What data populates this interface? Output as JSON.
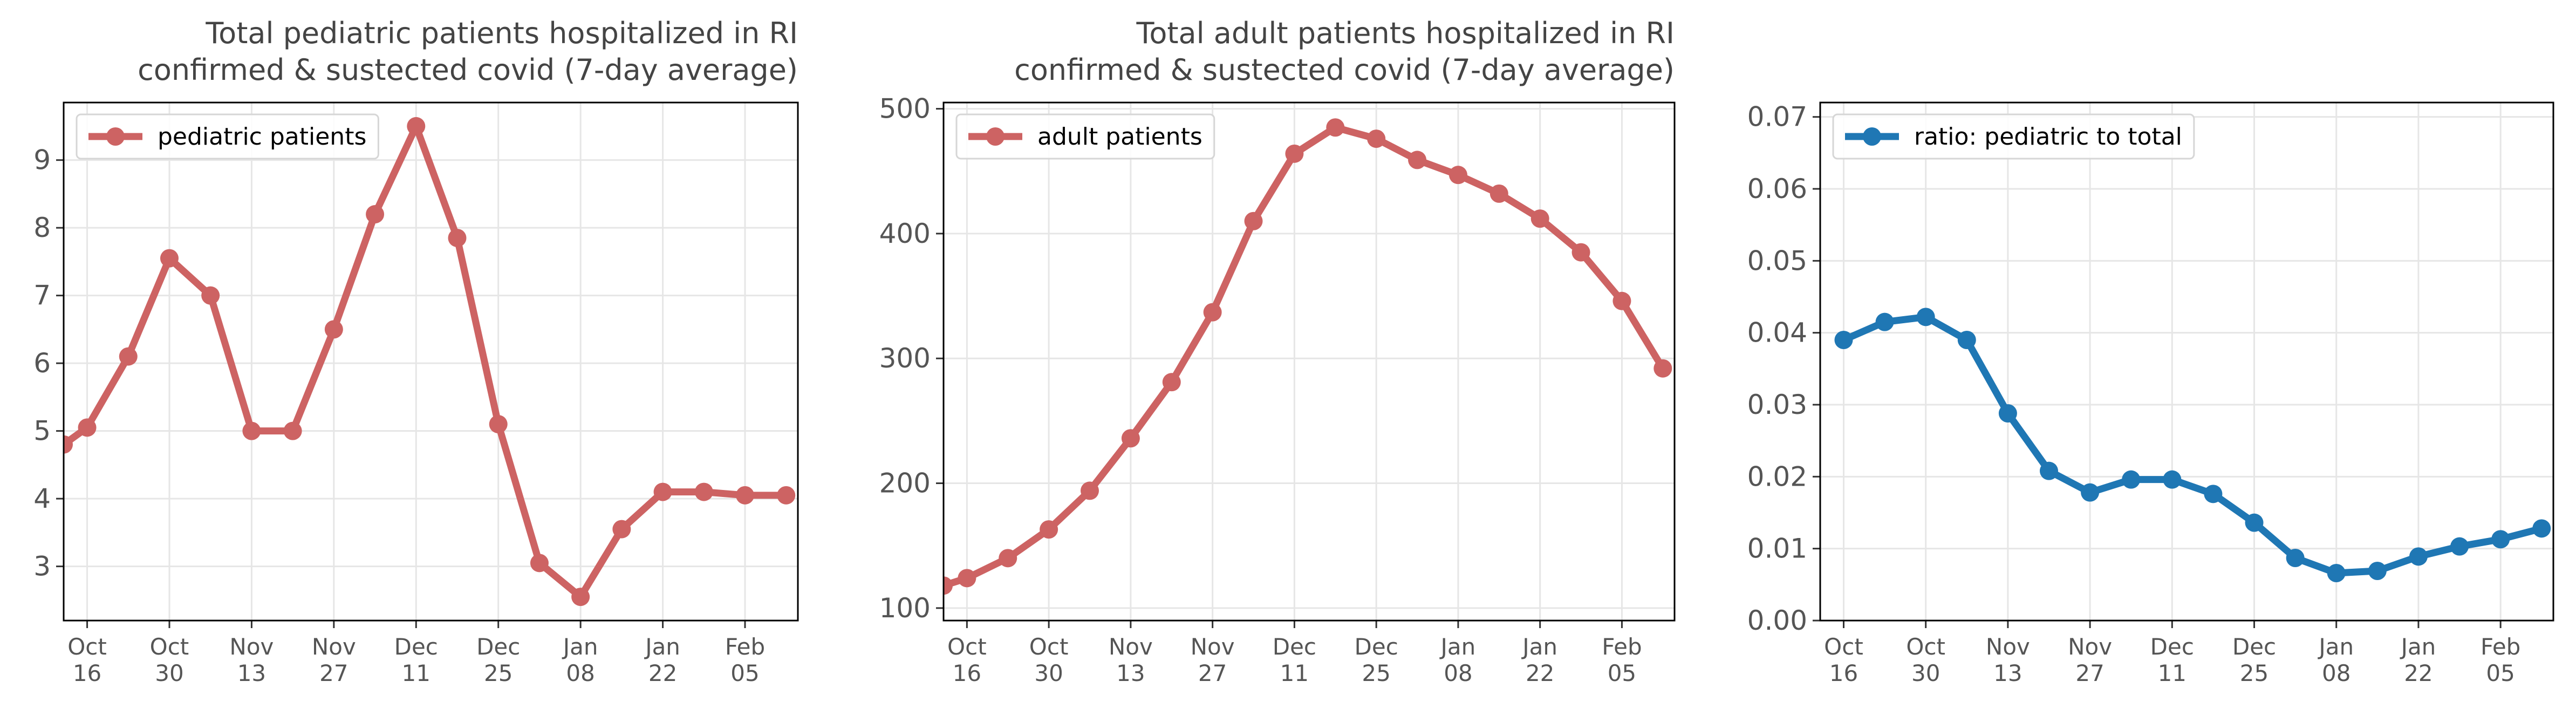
{
  "chart_data": [
    {
      "type": "line",
      "title_line1": "Total pediatric patients hospitalized in RI",
      "title_line2": "confirmed & sustected covid (7-day average)",
      "series": [
        {
          "name": "pediatric patients",
          "color": "#cd6363",
          "x": [
            "2021-10-12",
            "2021-10-16",
            "2021-10-23",
            "2021-10-30",
            "2021-11-06",
            "2021-11-13",
            "2021-11-20",
            "2021-11-27",
            "2021-12-04",
            "2021-12-11",
            "2021-12-18",
            "2021-12-25",
            "2022-01-01",
            "2022-01-08",
            "2022-01-15",
            "2022-01-22",
            "2022-01-29",
            "2022-02-05",
            "2022-02-12"
          ],
          "y": [
            4.8,
            5.05,
            6.1,
            7.55,
            7.0,
            5.0,
            5.0,
            6.5,
            8.2,
            9.5,
            7.85,
            5.1,
            3.05,
            2.55,
            3.55,
            4.1,
            4.1,
            4.05,
            4.05
          ]
        }
      ],
      "ylim": [
        2.2,
        9.85
      ],
      "yticks": [
        "3",
        "4",
        "5",
        "6",
        "7",
        "8",
        "9"
      ],
      "ytick_values": [
        3,
        4,
        5,
        6,
        7,
        8,
        9
      ],
      "xlim": [
        "2021-10-12",
        "2022-02-14"
      ],
      "xtick_dates": [
        "2021-10-16",
        "2021-10-30",
        "2021-11-13",
        "2021-11-27",
        "2021-12-11",
        "2021-12-25",
        "2022-01-08",
        "2022-01-22",
        "2022-02-05"
      ],
      "xtick_labels": [
        [
          "Oct",
          "16"
        ],
        [
          "Oct",
          "30"
        ],
        [
          "Nov",
          "13"
        ],
        [
          "Nov",
          "27"
        ],
        [
          "Dec",
          "11"
        ],
        [
          "Dec",
          "25"
        ],
        [
          "Jan",
          "08"
        ],
        [
          "Jan",
          "22"
        ],
        [
          "Feb",
          "05"
        ]
      ],
      "grid": true,
      "legend": "top-left"
    },
    {
      "type": "line",
      "title_line1": "Total adult patients hospitalized in RI",
      "title_line2": "confirmed & sustected covid (7-day average)",
      "series": [
        {
          "name": "adult patients",
          "color": "#cd6363",
          "x": [
            "2021-10-12",
            "2021-10-16",
            "2021-10-23",
            "2021-10-30",
            "2021-11-06",
            "2021-11-13",
            "2021-11-20",
            "2021-11-27",
            "2021-12-04",
            "2021-12-11",
            "2021-12-18",
            "2021-12-25",
            "2022-01-01",
            "2022-01-08",
            "2022-01-15",
            "2022-01-22",
            "2022-01-29",
            "2022-02-05",
            "2022-02-12"
          ],
          "y": [
            118,
            124,
            140,
            163,
            194,
            236,
            281,
            337,
            410,
            464,
            485,
            476,
            459,
            447,
            432,
            412,
            385,
            346,
            292
          ]
        }
      ],
      "ylim": [
        90,
        505
      ],
      "yticks": [
        "100",
        "200",
        "300",
        "400",
        "500"
      ],
      "ytick_values": [
        100,
        200,
        300,
        400,
        500
      ],
      "xlim": [
        "2021-10-12",
        "2022-02-14"
      ],
      "xtick_dates": [
        "2021-10-16",
        "2021-10-30",
        "2021-11-13",
        "2021-11-27",
        "2021-12-11",
        "2021-12-25",
        "2022-01-08",
        "2022-01-22",
        "2022-02-05"
      ],
      "xtick_labels": [
        [
          "Oct",
          "16"
        ],
        [
          "Oct",
          "30"
        ],
        [
          "Nov",
          "13"
        ],
        [
          "Nov",
          "27"
        ],
        [
          "Dec",
          "11"
        ],
        [
          "Dec",
          "25"
        ],
        [
          "Jan",
          "08"
        ],
        [
          "Jan",
          "22"
        ],
        [
          "Feb",
          "05"
        ]
      ],
      "grid": true,
      "legend": "top-left"
    },
    {
      "type": "line",
      "title_line1": "",
      "title_line2": "",
      "series": [
        {
          "name": "ratio: pediatric to total",
          "color": "#1f77b4",
          "x": [
            "2021-10-16",
            "2021-10-23",
            "2021-10-30",
            "2021-11-06",
            "2021-11-13",
            "2021-11-20",
            "2021-11-27",
            "2021-12-04",
            "2021-12-11",
            "2021-12-18",
            "2021-12-25",
            "2022-01-01",
            "2022-01-08",
            "2022-01-15",
            "2022-01-22",
            "2022-01-29",
            "2022-02-05",
            "2022-02-12"
          ],
          "y": [
            0.039,
            0.0415,
            0.0422,
            0.039,
            0.0288,
            0.0208,
            0.0178,
            0.0196,
            0.0196,
            0.0176,
            0.0136,
            0.0087,
            0.0066,
            0.0069,
            0.0089,
            0.0103,
            0.0113,
            0.0128
          ]
        }
      ],
      "ylim": [
        0.0,
        0.072
      ],
      "yticks": [
        "0.00",
        "0.01",
        "0.02",
        "0.03",
        "0.04",
        "0.05",
        "0.06",
        "0.07"
      ],
      "ytick_values": [
        0,
        0.01,
        0.02,
        0.03,
        0.04,
        0.05,
        0.06,
        0.07
      ],
      "xlim": [
        "2021-10-12",
        "2022-02-14"
      ],
      "xtick_dates": [
        "2021-10-16",
        "2021-10-30",
        "2021-11-13",
        "2021-11-27",
        "2021-12-11",
        "2021-12-25",
        "2022-01-08",
        "2022-01-22",
        "2022-02-05"
      ],
      "xtick_labels": [
        [
          "Oct",
          "16"
        ],
        [
          "Oct",
          "30"
        ],
        [
          "Nov",
          "13"
        ],
        [
          "Nov",
          "27"
        ],
        [
          "Dec",
          "11"
        ],
        [
          "Dec",
          "25"
        ],
        [
          "Jan",
          "08"
        ],
        [
          "Jan",
          "22"
        ],
        [
          "Feb",
          "05"
        ]
      ],
      "grid": true,
      "legend": "top-left"
    }
  ]
}
